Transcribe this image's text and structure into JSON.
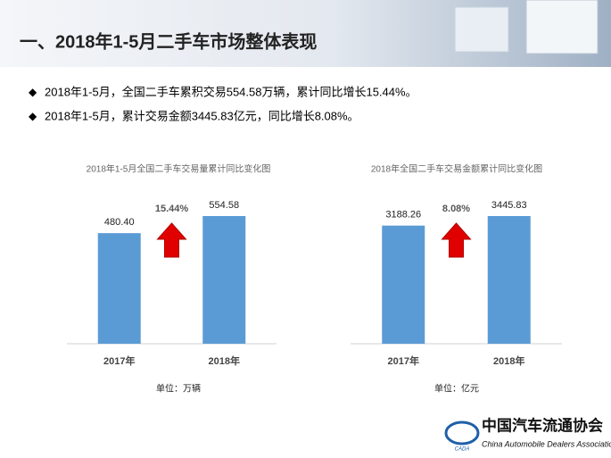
{
  "header": {
    "title": "一、2018年1-5月二手车市场整体表现"
  },
  "bullets": [
    "2018年1-5月，全国二手车累积交易554.58万辆，累计同比增长15.44%。",
    "2018年1-5月，累计交易金额3445.83亿元，同比增长8.08%。"
  ],
  "chart_data": [
    {
      "type": "bar",
      "title": "2018年1-5月全国二手车交易量累计同比变化图",
      "categories": [
        "2017年",
        "2018年"
      ],
      "values": [
        480.4,
        554.58
      ],
      "value_labels": [
        "480.40",
        "554.58"
      ],
      "color": "#5b9bd5",
      "annotation": "15.44%",
      "unit_label": "单位：万辆"
    },
    {
      "type": "bar",
      "title": "2018年全国二手车交易金额累计同比变化图",
      "categories": [
        "2017年",
        "2018年"
      ],
      "values": [
        3188.26,
        3445.83
      ],
      "color": "#5b9bd5",
      "annotation": "8.08%",
      "unit_label": "单位：亿元"
    }
  ],
  "logo": {
    "name_cn": "中国汽车流通协会",
    "name_en": "China Automobile Dealers Association",
    "abbr": "CADA"
  }
}
